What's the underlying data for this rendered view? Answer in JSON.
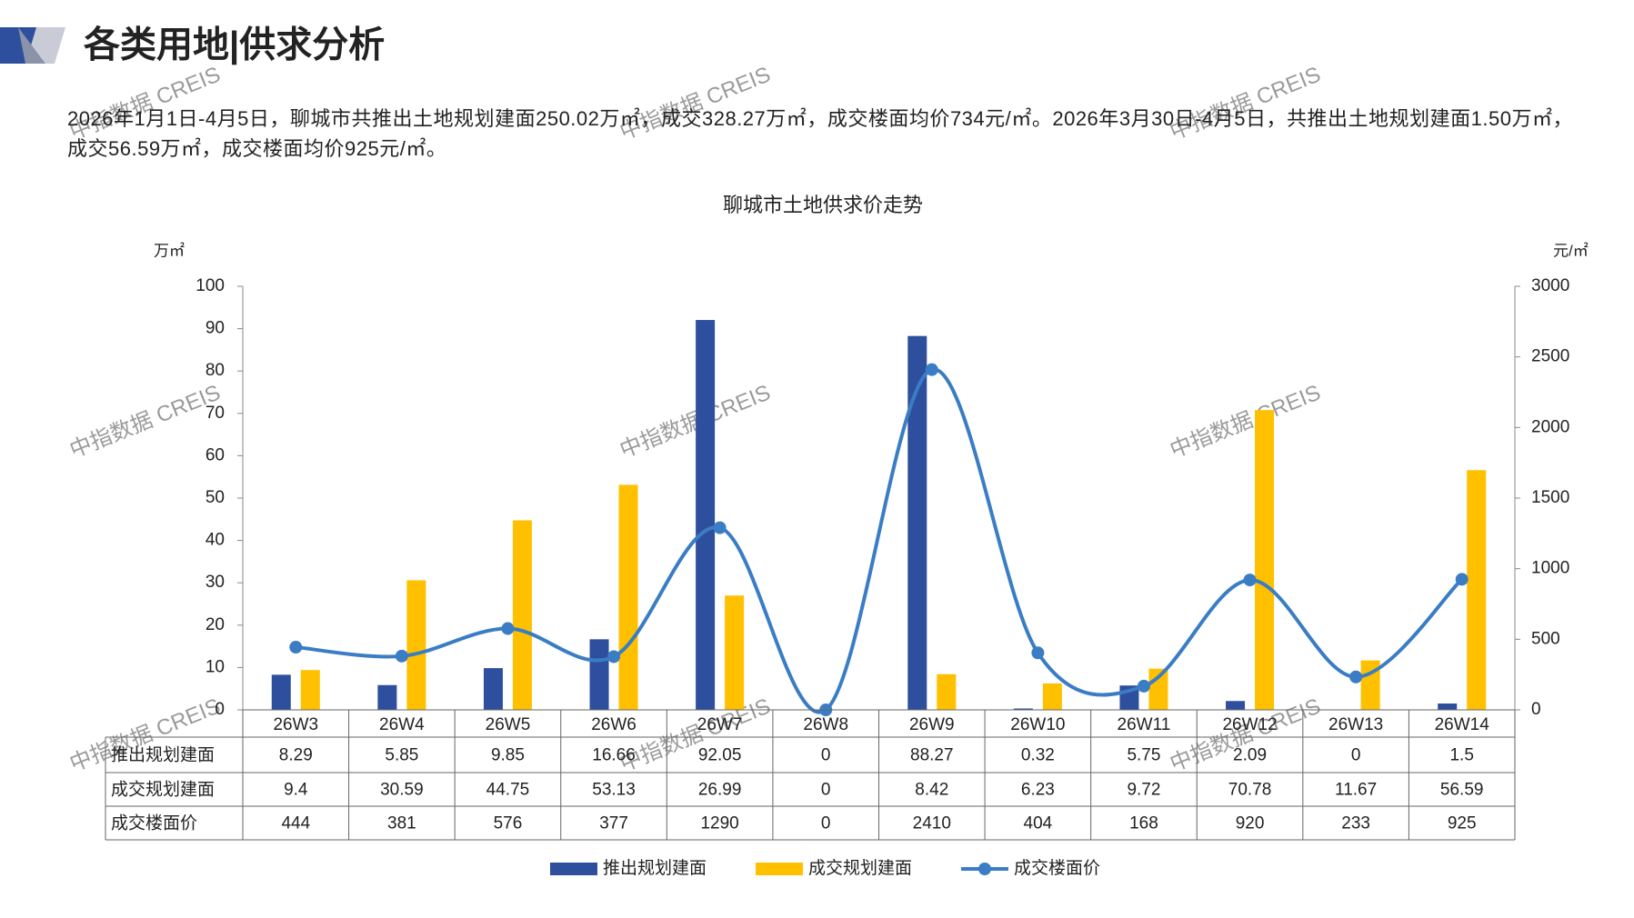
{
  "header": {
    "title": "各类用地|供求分析"
  },
  "summary": "2026年1月1日-4月5日，聊城市共推出土地规划建面250.02万㎡，成交328.27万㎡，成交楼面均价734元/㎡。2026年3月30日-4月5日，共推出土地规划建面1.50万㎡，成交56.59万㎡，成交楼面均价925元/㎡。",
  "watermark": "中指数据 CREIS",
  "chart_data": {
    "type": "combo",
    "title": "聊城市土地供求价走势",
    "y_label": "万㎡",
    "y2_label": "元/㎡",
    "categories": [
      "26W3",
      "26W4",
      "26W5",
      "26W6",
      "26W7",
      "26W8",
      "26W9",
      "26W10",
      "26W11",
      "26W12",
      "26W13",
      "26W14"
    ],
    "series": [
      {
        "name": "推出规划建面",
        "kind": "bar",
        "color": "#2e4f9e",
        "values": [
          8.29,
          5.85,
          9.85,
          16.66,
          92.05,
          0,
          88.27,
          0.32,
          5.75,
          2.09,
          0,
          1.5
        ]
      },
      {
        "name": "成交规划建面",
        "kind": "bar",
        "color": "#ffc000",
        "values": [
          9.4,
          30.59,
          44.75,
          53.13,
          26.99,
          0,
          8.42,
          6.23,
          9.72,
          70.78,
          11.67,
          56.59
        ]
      },
      {
        "name": "成交楼面价",
        "kind": "line",
        "axis": "y2",
        "color": "#3a7dc4",
        "values": [
          444,
          381,
          576,
          377,
          1290,
          0,
          2410,
          404,
          168,
          920,
          233,
          925
        ]
      }
    ],
    "ylim": [
      0,
      100
    ],
    "yticks": [
      0,
      10,
      20,
      30,
      40,
      50,
      60,
      70,
      80,
      90,
      100
    ],
    "y2lim": [
      0,
      3000
    ],
    "y2ticks": [
      0,
      500,
      1000,
      1500,
      2000,
      2500,
      3000
    ],
    "legend": "bottom"
  }
}
